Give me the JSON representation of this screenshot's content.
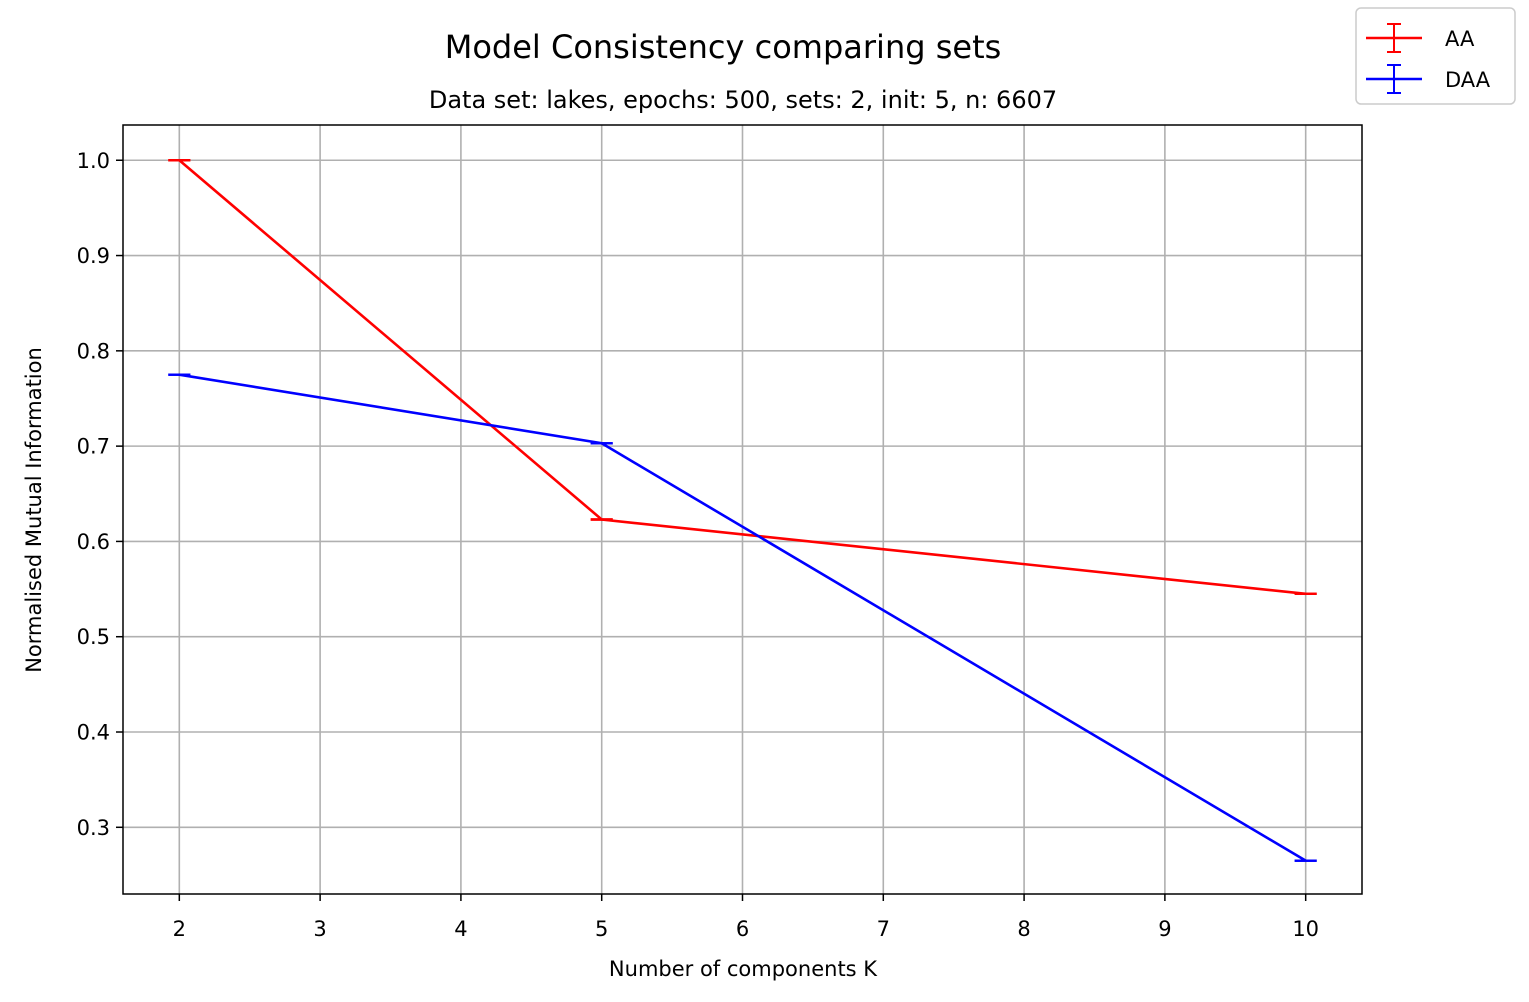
{
  "chart_data": {
    "type": "line",
    "title": "Model Consistency comparing sets",
    "subtitle": "Data set:  lakes, epochs: 500, sets: 2, init: 5, n: 6607",
    "xlabel": "Number of components K",
    "ylabel": "Normalised Mutual Information",
    "x": [
      2,
      5,
      10
    ],
    "xlim": [
      1.6,
      10.4
    ],
    "ylim": [
      0.23,
      1.037
    ],
    "xticks": [
      2,
      3,
      4,
      5,
      6,
      7,
      8,
      9,
      10
    ],
    "xtick_labels": [
      "2",
      "3",
      "4",
      "5",
      "6",
      "7",
      "8",
      "9",
      "10"
    ],
    "yticks": [
      0.3,
      0.4,
      0.5,
      0.6,
      0.7,
      0.8,
      0.9,
      1.0
    ],
    "ytick_labels": [
      "0.3",
      "0.4",
      "0.5",
      "0.6",
      "0.7",
      "0.8",
      "0.9",
      "1.0"
    ],
    "grid": true,
    "legend_position": "top-right (outside axes)",
    "series": [
      {
        "name": "AA",
        "color": "#ff0000",
        "values": [
          1.0,
          0.623,
          0.545
        ],
        "errors": [
          0.0,
          0.0,
          0.0
        ]
      },
      {
        "name": "DAA",
        "color": "#0000ff",
        "values": [
          0.775,
          0.703,
          0.265
        ],
        "errors": [
          0.0,
          0.0,
          0.0
        ]
      }
    ]
  }
}
